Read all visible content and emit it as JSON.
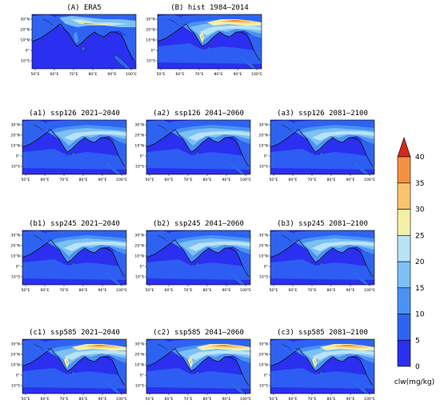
{
  "panels": [
    {
      "id": "A",
      "title": "(A) ERA5",
      "pattern": "era5"
    },
    {
      "id": "B",
      "title": "(B) hist 1984–2014",
      "pattern": "hist"
    },
    {
      "id": "a1",
      "title": "(a1) ssp126 2021–2040",
      "pattern": "ssp1"
    },
    {
      "id": "a2",
      "title": "(a2) ssp126 2041–2060",
      "pattern": "ssp1"
    },
    {
      "id": "a3",
      "title": "(a3) ssp126 2081–2100",
      "pattern": "ssp1"
    },
    {
      "id": "b1",
      "title": "(b1) ssp245 2021–2040",
      "pattern": "ssp2"
    },
    {
      "id": "b2",
      "title": "(b2) ssp245 2041–2060",
      "pattern": "ssp2"
    },
    {
      "id": "b3",
      "title": "(b3) ssp245 2081–2100",
      "pattern": "ssp2"
    },
    {
      "id": "c1",
      "title": "(c1) ssp585 2021–2040",
      "pattern": "ssp5"
    },
    {
      "id": "c2",
      "title": "(c2) ssp585 2041–2060",
      "pattern": "ssp5"
    },
    {
      "id": "c3",
      "title": "(c3) ssp585 2081–2100",
      "pattern": "ssp5"
    }
  ],
  "axes": {
    "lon_ticks": [
      "50°E",
      "60°E",
      "70°E",
      "80°E",
      "90°E",
      "100°E"
    ],
    "lat_ticks": [
      "30°N",
      "20°N",
      "10°N",
      "0°",
      "10°S"
    ]
  },
  "colorbar": {
    "label": "clw(mg/kg)",
    "levels": [
      "0",
      "5",
      "10",
      "15",
      "20",
      "25",
      "30",
      "35",
      "40"
    ],
    "colors": [
      "#2a2ff0",
      "#2e63f2",
      "#4a92f3",
      "#7cc0f5",
      "#b9e3f7",
      "#f5f0a8",
      "#f9c46c",
      "#f59240",
      "#e35d1e"
    ],
    "top_color": "#d6281a"
  },
  "map_colors": {
    "ocean": "#2a2ff0",
    "land": "#2e63f2",
    "coast": "#111111"
  }
}
